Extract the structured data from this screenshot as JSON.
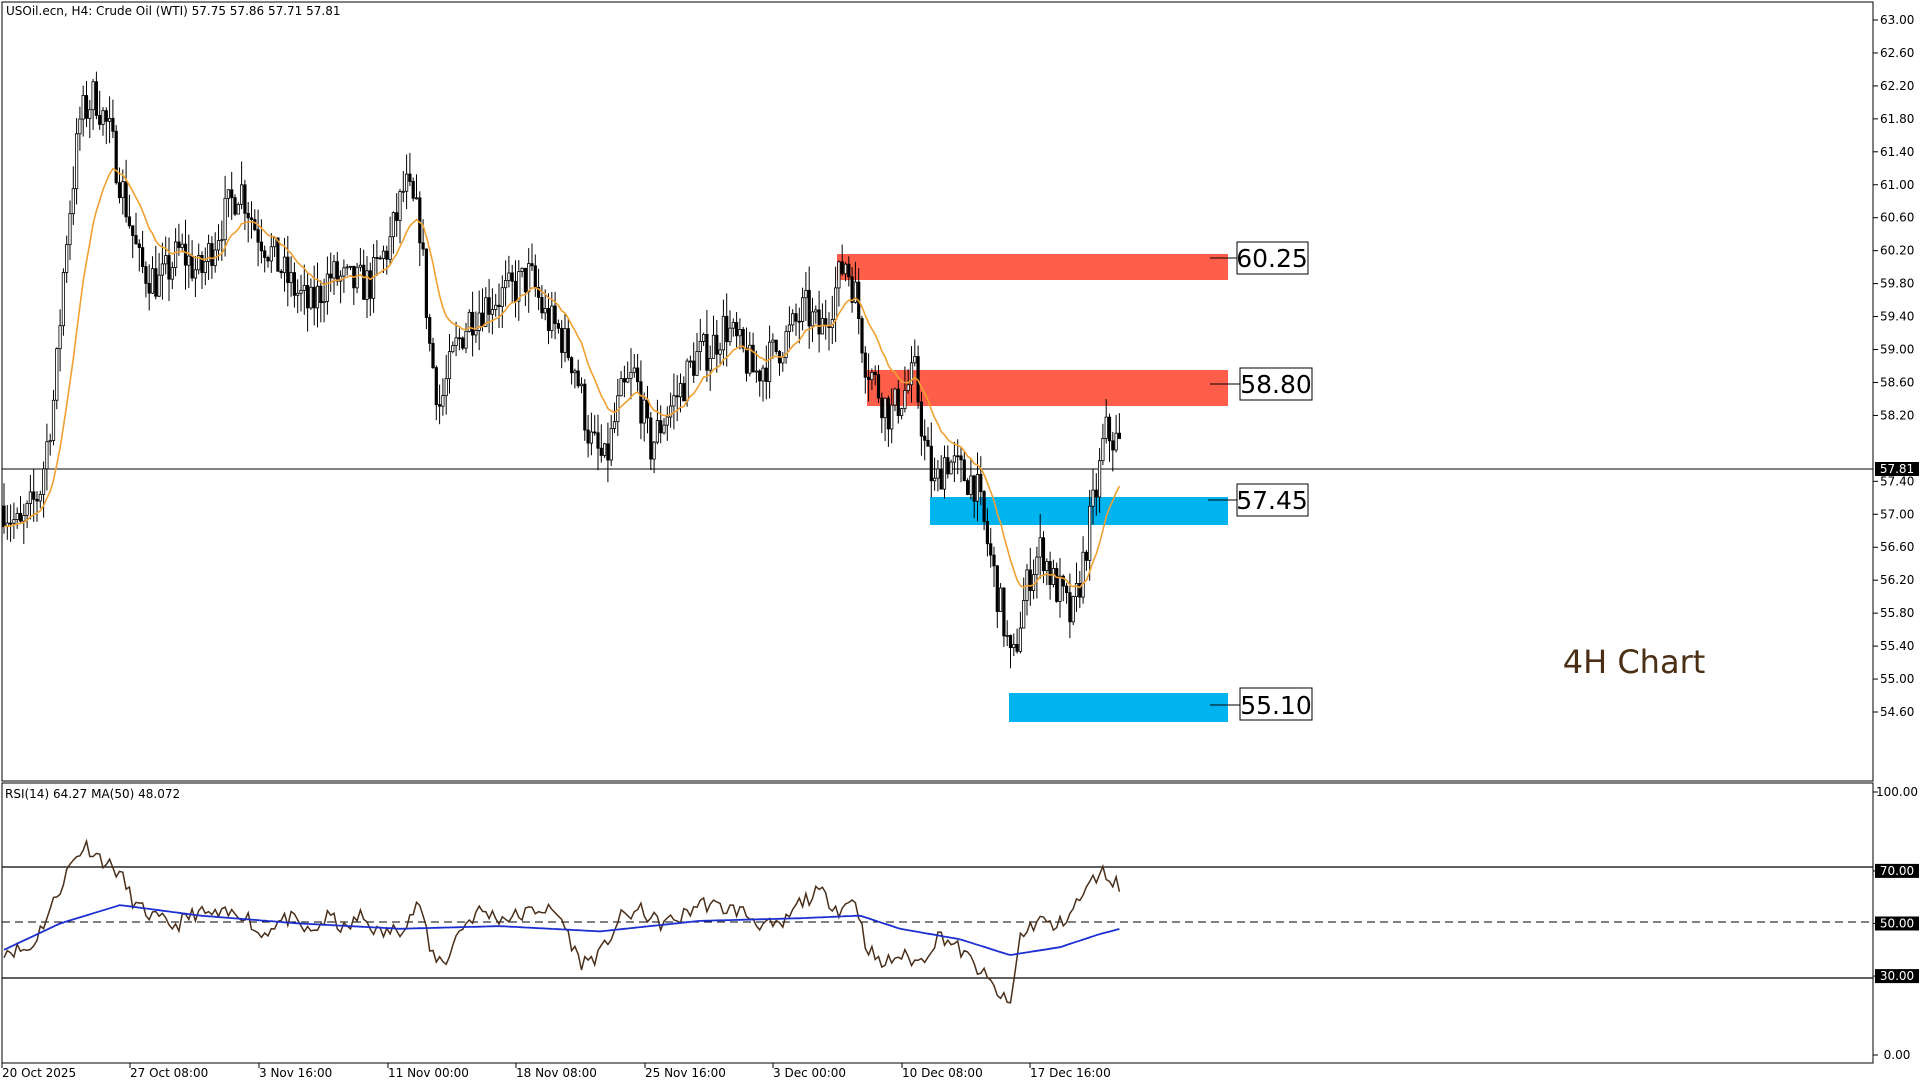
{
  "header": {
    "symbol_line": "USOil.ecn, H4:  Crude Oil (WTI)  57.75 57.86 57.71 57.81"
  },
  "watermark": "4H Chart",
  "levels": {
    "resistance_upper": "60.25",
    "resistance_lower": "58.80",
    "support_upper": "57.45",
    "support_lower": "55.10"
  },
  "colors": {
    "resistance_zone": "#ff5f4a",
    "support_zone": "#00b4f0",
    "moving_average": "#f0a030",
    "rsi_line": "#4a2f1a",
    "rsi_ma_line": "#1c2fd0",
    "candle": "#000000"
  },
  "price_panel": {
    "current_price_label": "57.81",
    "tick_labels": [
      "63.00",
      "62.60",
      "62.20",
      "61.80",
      "61.40",
      "61.00",
      "60.60",
      "60.20",
      "59.80",
      "59.40",
      "59.00",
      "58.60",
      "58.20",
      "57.40",
      "57.00",
      "56.60",
      "56.20",
      "55.80",
      "55.40",
      "55.00",
      "54.60"
    ]
  },
  "rsi_panel": {
    "header": "RSI(14) 64.27 MA(50) 48.072",
    "tick_labels": [
      "100.00",
      "70.00",
      "50.00",
      "30.00",
      "0.00"
    ]
  },
  "x_axis": {
    "tick_labels": [
      "20 Oct 2025",
      "27 Oct 08:00",
      "3 Nov 16:00",
      "11 Nov 00:00",
      "18 Nov 08:00",
      "25 Nov 16:00",
      "3 Dec 00:00",
      "10 Dec 08:00",
      "17 Dec 16:00"
    ]
  },
  "chart_data": [
    {
      "type": "line",
      "name": "USOil.ecn H4 price (candlesticks, approximate closes)",
      "ylim": [
        54.5,
        63.1
      ],
      "x": [
        "20 Oct 2025",
        "27 Oct 08:00",
        "3 Nov 16:00",
        "11 Nov 00:00",
        "18 Nov 08:00",
        "25 Nov 16:00",
        "3 Dec 00:00",
        "10 Dec 08:00",
        "17 Dec 16:00"
      ],
      "series": [
        {
          "values": [
            57.1,
            60.7,
            60.0,
            60.8,
            59.5,
            58.5,
            59.7,
            58.7,
            57.81
          ]
        }
      ],
      "horizontal_lines": [
        57.81
      ],
      "zones": [
        {
          "label": "60.25",
          "from": 59.98,
          "to": 60.25,
          "kind": "resistance"
        },
        {
          "label": "58.80",
          "from": 58.4,
          "to": 58.8,
          "kind": "resistance"
        },
        {
          "label": "57.45",
          "from": 57.14,
          "to": 57.45,
          "kind": "support"
        },
        {
          "label": "55.10",
          "from": 54.95,
          "to": 55.25,
          "kind": "support"
        }
      ],
      "grid": false
    },
    {
      "type": "line",
      "ylim": [
        0,
        100
      ],
      "x": [
        "20 Oct 2025",
        "27 Oct 08:00",
        "3 Nov 16:00",
        "11 Nov 00:00",
        "18 Nov 08:00",
        "25 Nov 16:00",
        "3 Dec 00:00",
        "10 Dec 08:00",
        "17 Dec 16:00"
      ],
      "series": [
        {
          "values": [
            40,
            64,
            52,
            48,
            45,
            55,
            58,
            35,
            64.27
          ]
        },
        {
          "values": [
            40,
            56,
            50,
            48,
            48,
            50,
            52,
            40,
            48.072
          ]
        }
      ],
      "horizontal_lines": [
        70,
        50,
        30
      ],
      "grid": false
    }
  ]
}
